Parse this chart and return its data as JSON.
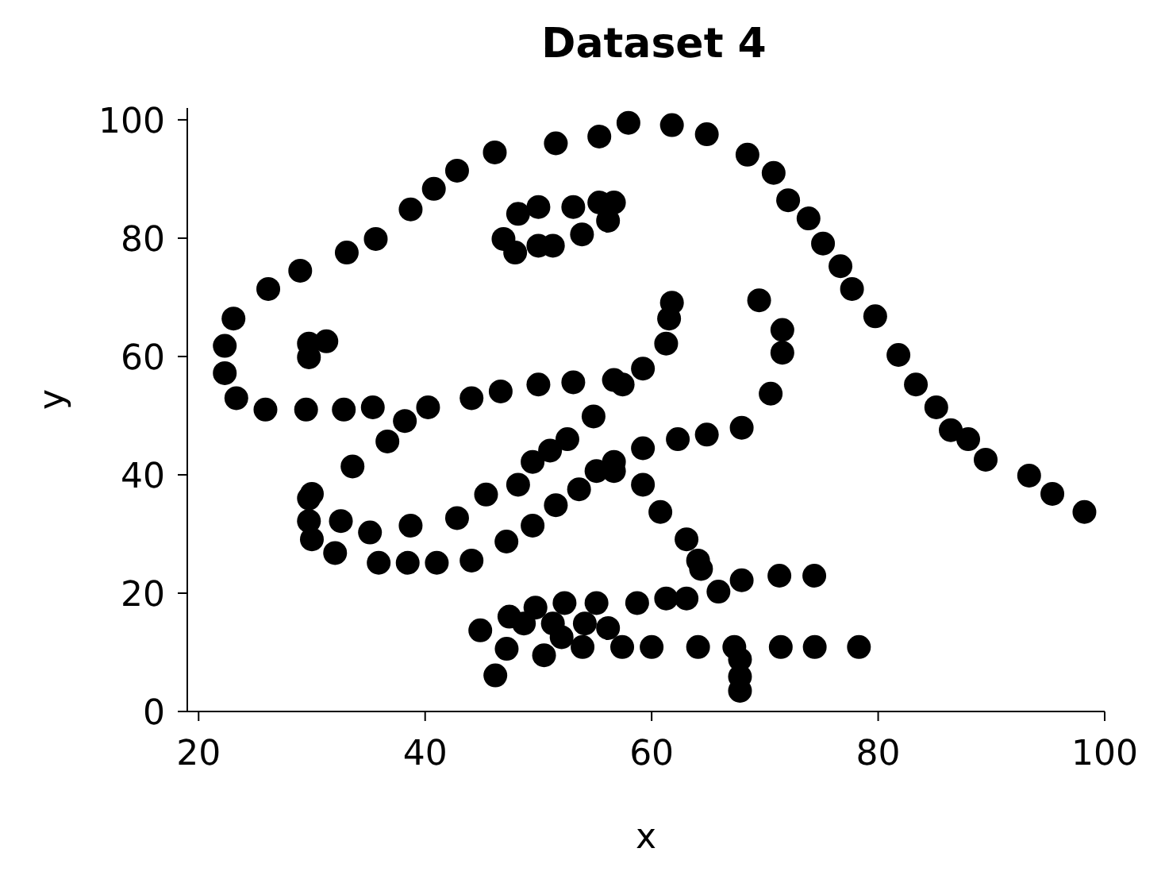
{
  "chart_data": {
    "type": "scatter",
    "title": "Dataset 4",
    "xlabel": "x",
    "ylabel": "y",
    "xlim": [
      19,
      100
    ],
    "ylim": [
      0,
      102
    ],
    "xticks": [
      20,
      40,
      60,
      80,
      100
    ],
    "yticks": [
      0,
      20,
      40,
      60,
      80,
      100
    ],
    "grid": false,
    "legend": false,
    "marker": "circle",
    "series": [
      {
        "color": "#000000",
        "x": [
          55.38,
          51.54,
          46.15,
          42.82,
          40.77,
          38.72,
          35.64,
          33.08,
          28.97,
          26.15,
          23.08,
          22.31,
          22.31,
          23.33,
          25.9,
          29.49,
          32.82,
          35.38,
          40.26,
          44.1,
          46.67,
          50,
          53.08,
          56.67,
          59.23,
          61.28,
          61.54,
          61.79,
          57.44,
          54.87,
          52.56,
          48.21,
          49.49,
          51.03,
          45.38,
          42.82,
          38.72,
          35.13,
          32.56,
          30,
          33.59,
          36.67,
          38.21,
          29.74,
          29.74,
          30,
          32.05,
          35.9,
          38.46,
          41.03,
          44.1,
          47.18,
          49.49,
          51.54,
          53.59,
          55.13,
          56.67,
          59.23,
          62.31,
          64.87,
          67.95,
          70.51,
          71.54,
          71.54,
          69.49,
          46.92,
          48.21,
          50,
          53.08,
          55.38,
          56.67,
          56.15,
          53.85,
          51.28,
          50,
          47.95,
          29.74,
          29.74,
          31.28,
          57.95,
          61.79,
          64.87,
          68.46,
          70.77,
          72.05,
          73.85,
          75.13,
          76.67,
          77.69,
          79.74,
          81.79,
          83.33,
          85.13,
          86.41,
          87.95,
          89.49,
          93.33,
          95.38,
          98.21,
          56.67,
          59.23,
          60.77,
          63.08,
          64.1,
          64.36,
          74.36,
          71.28,
          67.95,
          65.9,
          63.08,
          61.28,
          58.72,
          55.13,
          52.31,
          49.74,
          47.44,
          44.87,
          48.72,
          51.28,
          54.1,
          56.15,
          52.05,
          47.2,
          50.5,
          46.2,
          53.9,
          57.4,
          60,
          64.1,
          67.3,
          67.8,
          67.8,
          67.8,
          71.4,
          74.4,
          78.3
        ],
        "values": [
          97.18,
          96.03,
          94.49,
          91.41,
          88.33,
          84.87,
          79.87,
          77.56,
          74.49,
          71.41,
          66.41,
          61.79,
          57.18,
          52.95,
          51.03,
          51.03,
          51.03,
          51.41,
          51.41,
          52.95,
          54.1,
          55.26,
          55.64,
          56.03,
          57.95,
          62.18,
          66.41,
          69.1,
          55.26,
          49.87,
          46.03,
          38.33,
          42.18,
          44.1,
          36.67,
          32.69,
          31.41,
          30.26,
          32.18,
          36.79,
          41.41,
          45.64,
          49.1,
          36.03,
          32.18,
          29.1,
          26.79,
          25.13,
          25.13,
          25.13,
          25.51,
          28.72,
          31.41,
          34.87,
          37.56,
          40.64,
          42.18,
          44.49,
          46.03,
          46.79,
          47.95,
          53.72,
          60.64,
          64.49,
          69.49,
          79.87,
          84.1,
          85.26,
          85.26,
          86.03,
          86.03,
          82.95,
          80.64,
          78.72,
          78.72,
          77.56,
          59.87,
          62.18,
          62.56,
          99.49,
          99.1,
          97.56,
          94.1,
          91.03,
          86.41,
          83.33,
          79.1,
          75.26,
          71.41,
          66.79,
          60.26,
          55.26,
          51.41,
          47.56,
          46.03,
          42.56,
          39.87,
          36.79,
          33.72,
          40.64,
          38.33,
          33.72,
          29.1,
          25.51,
          24.1,
          22.95,
          22.95,
          22.18,
          20.26,
          19.1,
          19.1,
          18.33,
          18.33,
          18.33,
          17.56,
          16.03,
          13.72,
          14.87,
          14.87,
          14.87,
          14.1,
          12.56,
          10.6,
          9.5,
          6.1,
          10.9,
          10.9,
          10.9,
          10.9,
          10.9,
          8.8,
          5.9,
          3.5,
          10.9,
          10.9,
          10.9
        ]
      }
    ]
  }
}
